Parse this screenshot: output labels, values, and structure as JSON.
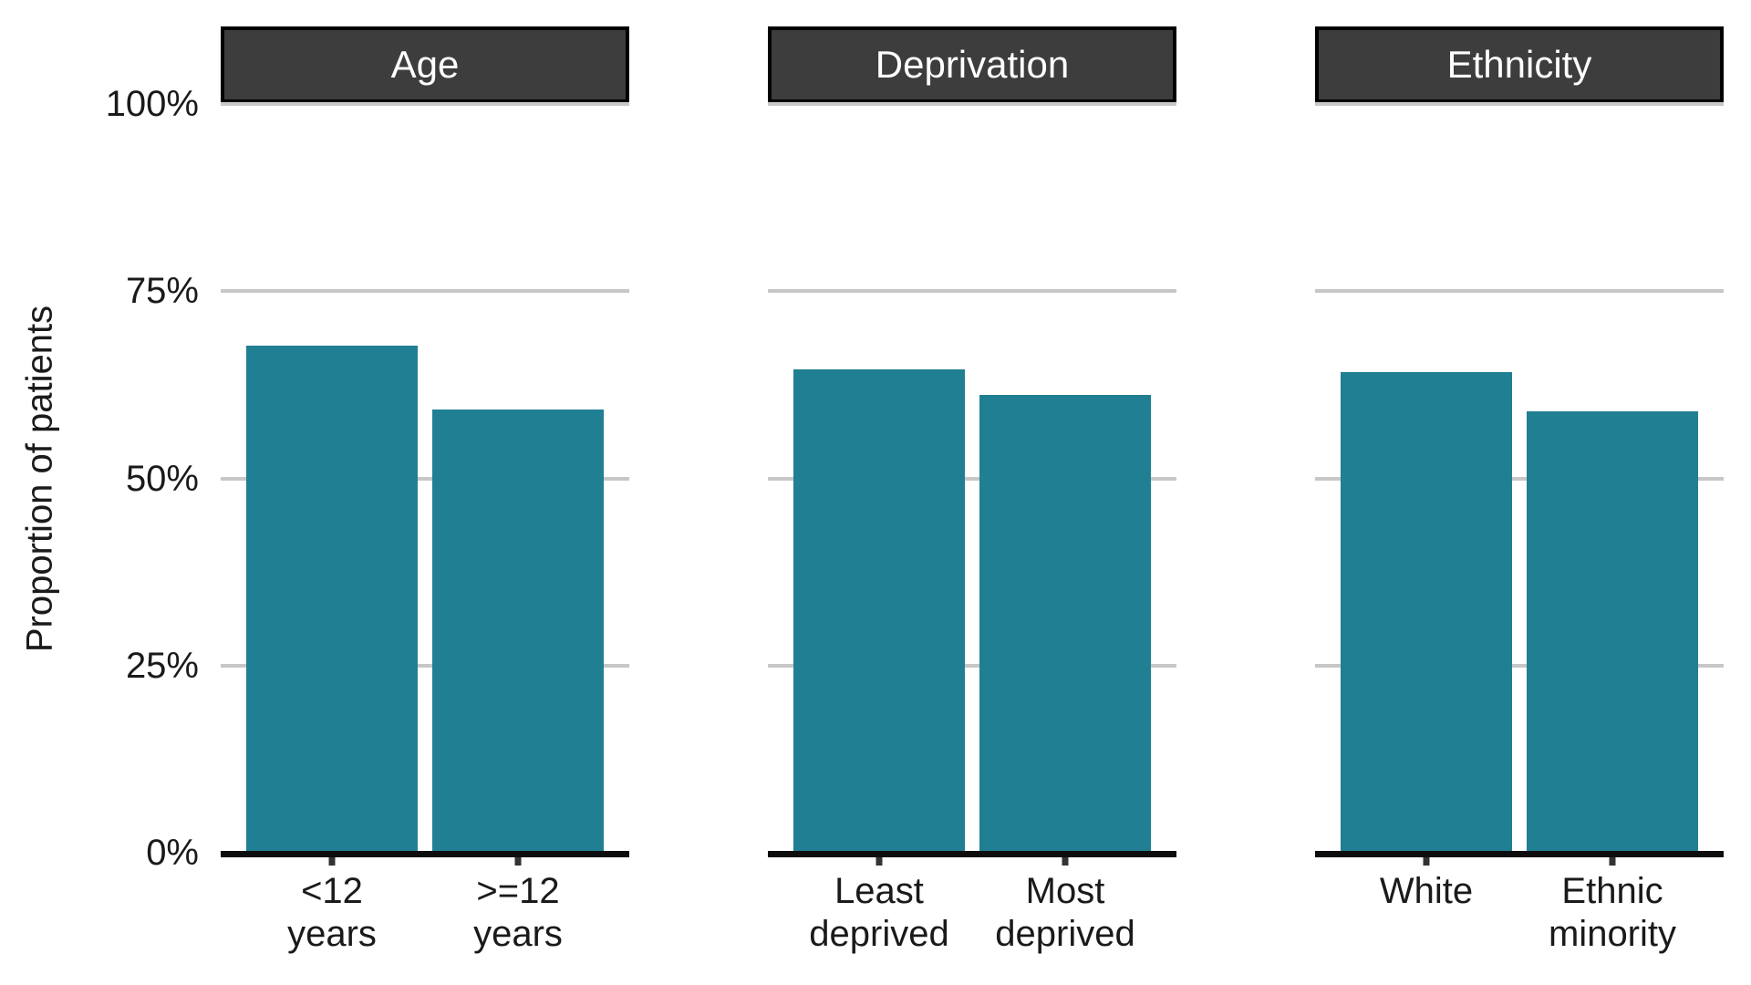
{
  "colors": {
    "bar_fill": "#217f93",
    "strip_background": "#3d3d3d",
    "strip_border": "#000000",
    "strip_text": "#ffffff",
    "gridline": "#c7c7c7",
    "axis_line": "#0d0d0d",
    "label_text": "#1a1a1a",
    "background": "#ffffff"
  },
  "y_axis": {
    "title": "Proportion of patients",
    "ticks": [
      {
        "value": 100,
        "label": "100%"
      },
      {
        "value": 75,
        "label": "75%"
      },
      {
        "value": 50,
        "label": "50%"
      },
      {
        "value": 25,
        "label": "25%"
      },
      {
        "value": 0,
        "label": "0%"
      }
    ]
  },
  "chart_data": {
    "type": "bar",
    "title": "",
    "xlabel": "",
    "ylabel": "Proportion of patients",
    "ylim": [
      0,
      100
    ],
    "grid": "horizontal",
    "legend": "none",
    "unit": "%",
    "facets": [
      {
        "label": "Age",
        "categories": [
          "<12 years",
          ">=12 years"
        ],
        "values": [
          67.5,
          58.9
        ]
      },
      {
        "label": "Deprivation",
        "categories": [
          "Least deprived",
          "Most deprived"
        ],
        "values": [
          64.3,
          60.9
        ]
      },
      {
        "label": "Ethnicity",
        "categories": [
          "White",
          "Ethnic minority"
        ],
        "values": [
          64.0,
          58.7
        ]
      }
    ]
  }
}
